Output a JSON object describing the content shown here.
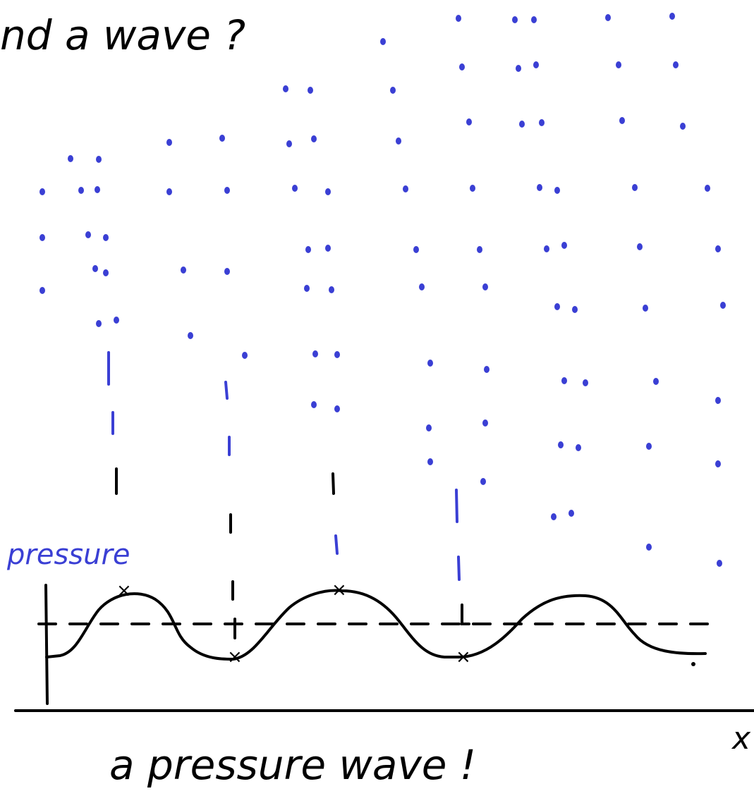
{
  "heading": "nd a wave ?",
  "axis_label_y": "pressure",
  "axis_label_x": "x",
  "caption": "a pressure wave !"
}
